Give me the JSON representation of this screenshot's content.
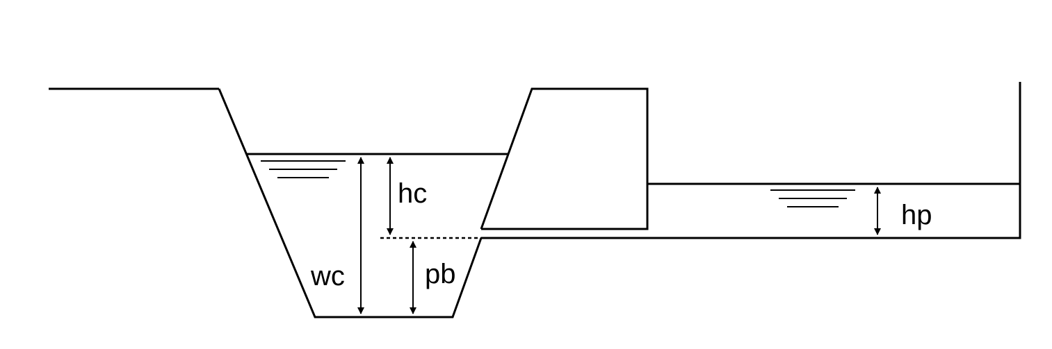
{
  "labels": {
    "hc": "hc",
    "wc": "wc",
    "pb": "pb",
    "hp": "hp"
  },
  "colors": {
    "line": "#000000",
    "background": "#ffffff"
  }
}
